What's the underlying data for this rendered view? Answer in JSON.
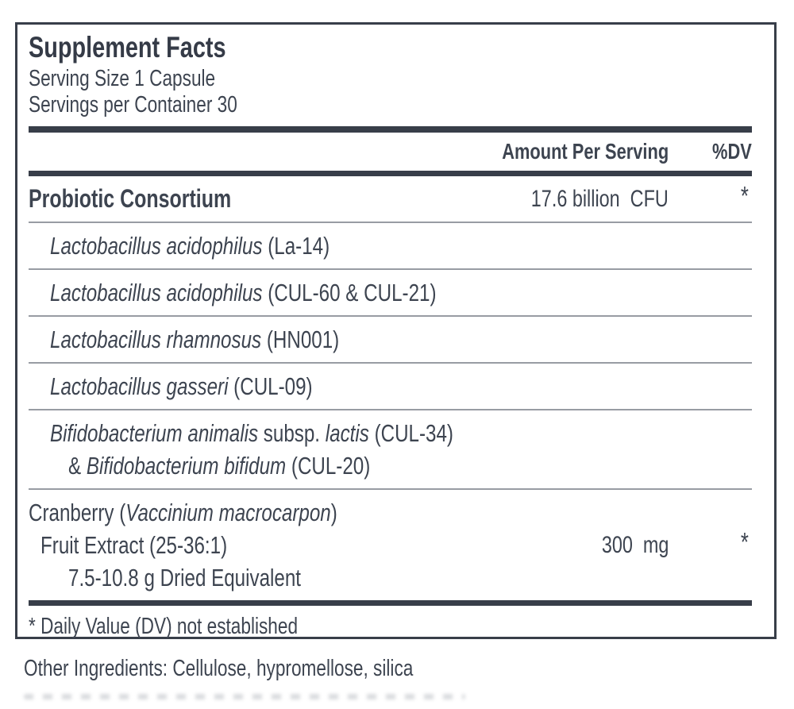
{
  "colors": {
    "text": "#3d4450",
    "rule_dark": "#383e49",
    "rule_thin": "#989ca3"
  },
  "panel": {
    "title": "Supplement Facts",
    "serving_size": "Serving Size 1 Capsule",
    "servings_per_container": "Servings per Container 30",
    "columns": {
      "amount": "Amount Per Serving",
      "dv": "%DV"
    },
    "rows": [
      {
        "bold": true,
        "lines": [
          {
            "indent": 0,
            "segments": [
              {
                "text": "Probiotic Consortium"
              }
            ],
            "amount": "17.6 billion  CFU",
            "dv": "*"
          }
        ]
      },
      {
        "lines": [
          {
            "indent": 2,
            "segments": [
              {
                "text": "Lactobacillus acidophilus",
                "italic": true
              },
              {
                "text": " (La-14)"
              }
            ]
          }
        ]
      },
      {
        "lines": [
          {
            "indent": 2,
            "segments": [
              {
                "text": "Lactobacillus acidophilus",
                "italic": true
              },
              {
                "text": " (CUL-60 & CUL-21)"
              }
            ]
          }
        ]
      },
      {
        "lines": [
          {
            "indent": 2,
            "segments": [
              {
                "text": "Lactobacillus rhamnosus",
                "italic": true
              },
              {
                "text": " (HN001)"
              }
            ]
          }
        ]
      },
      {
        "lines": [
          {
            "indent": 2,
            "segments": [
              {
                "text": "Lactobacillus gasseri",
                "italic": true
              },
              {
                "text": " (CUL-09)"
              }
            ]
          }
        ]
      },
      {
        "lines": [
          {
            "indent": 2,
            "segments": [
              {
                "text": "Bifidobacterium animalis",
                "italic": true
              },
              {
                "text": " subsp. "
              },
              {
                "text": "lactis",
                "italic": true
              },
              {
                "text": " (CUL-34)"
              }
            ]
          },
          {
            "indent": 3,
            "segments": [
              {
                "text": "& "
              },
              {
                "text": "Bifidobacterium bifidum",
                "italic": true
              },
              {
                "text": " (CUL-20)"
              }
            ]
          }
        ]
      },
      {
        "lines": [
          {
            "indent": 0,
            "segments": [
              {
                "text": "Cranberry ("
              },
              {
                "text": "Vaccinium macrocarpon",
                "italic": true
              },
              {
                "text": ")"
              }
            ]
          },
          {
            "indent": 1,
            "segments": [
              {
                "text": "Fruit Extract (25-36:1)"
              }
            ],
            "amount": "300  mg",
            "dv": "*"
          },
          {
            "indent": 3,
            "segments": [
              {
                "text": "7.5-10.8 g Dried Equivalent"
              }
            ]
          }
        ]
      }
    ],
    "footnote": "* Daily Value (DV) not established"
  },
  "other_ingredients": "Other Ingredients: Cellulose, hypromellose, silica"
}
